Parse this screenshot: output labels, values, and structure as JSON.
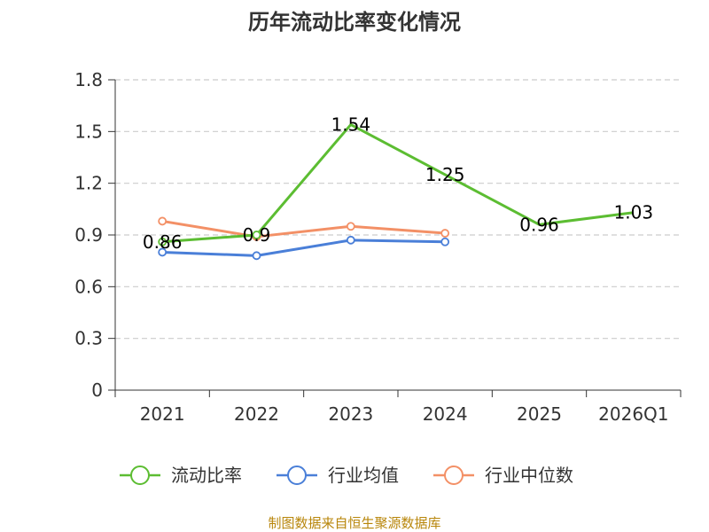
{
  "chart_data": {
    "type": "line",
    "title": "历年流动比率变化情况",
    "categories": [
      "2021",
      "2022",
      "2023",
      "2024",
      "2025",
      "2026Q1"
    ],
    "ylim": [
      0,
      1.8
    ],
    "yticks": [
      "0",
      "0.3",
      "0.6",
      "0.9",
      "1.2",
      "1.5",
      "1.8"
    ],
    "yticks_values": [
      0,
      0.3,
      0.6,
      0.9,
      1.2,
      1.5,
      1.8
    ],
    "grid": true,
    "legend_position": "bottom",
    "series": [
      {
        "name": "流动比率",
        "color": "#5cbd32",
        "values": [
          0.86,
          0.9,
          1.54,
          1.25,
          0.96,
          1.03
        ],
        "labels": [
          "0.86",
          "0.9",
          "1.54",
          "1.25",
          "0.96",
          "1.03"
        ],
        "show_markers": [
          true,
          true,
          false,
          false,
          false,
          false
        ]
      },
      {
        "name": "行业均值",
        "color": "#4a7fd8",
        "values": [
          0.8,
          0.78,
          0.87,
          0.86,
          null,
          null
        ]
      },
      {
        "name": "行业中位数",
        "color": "#f39066",
        "values": [
          0.98,
          0.89,
          0.95,
          0.91,
          null,
          null
        ]
      }
    ],
    "source": "制图数据来自恒生聚源数据库"
  }
}
